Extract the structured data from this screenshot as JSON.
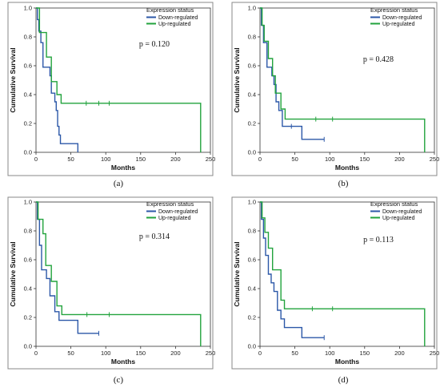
{
  "chart_data": [
    {
      "panel_label": "(a)",
      "type": "line",
      "xlabel": "Months",
      "ylabel": "Cumulative Survival",
      "xlim": [
        0,
        250
      ],
      "ylim": [
        0,
        1.0
      ],
      "xticks": [
        0,
        50,
        100,
        150,
        200,
        250
      ],
      "yticks": [
        0.0,
        0.2,
        0.4,
        0.6,
        0.8,
        1.0
      ],
      "legend_title": "Expression status",
      "legend_position": "top-right",
      "annotation": "p = 0.120",
      "series": [
        {
          "name": "Down-regulated",
          "color": "#2c58a8",
          "steps": [
            [
              0,
              1.0
            ],
            [
              2,
              0.92
            ],
            [
              4,
              0.84
            ],
            [
              7,
              0.76
            ],
            [
              10,
              0.59
            ],
            [
              20,
              0.53
            ],
            [
              22,
              0.41
            ],
            [
              27,
              0.35
            ],
            [
              29,
              0.29
            ],
            [
              31,
              0.18
            ],
            [
              33,
              0.12
            ],
            [
              35,
              0.06
            ],
            [
              60,
              0.0
            ]
          ],
          "censored": []
        },
        {
          "name": "Up-regulated",
          "color": "#22a33d",
          "steps": [
            [
              0,
              1.0
            ],
            [
              5,
              0.83
            ],
            [
              15,
              0.66
            ],
            [
              22,
              0.49
            ],
            [
              30,
              0.4
            ],
            [
              36,
              0.34
            ],
            [
              236,
              0.0
            ]
          ],
          "censored": [
            [
              72,
              0.34
            ],
            [
              90,
              0.34
            ],
            [
              105,
              0.34
            ]
          ]
        }
      ]
    },
    {
      "panel_label": "(b)",
      "type": "line",
      "xlabel": "Months",
      "ylabel": "Cumulative Survival",
      "xlim": [
        0,
        250
      ],
      "ylim": [
        0,
        1.0
      ],
      "xticks": [
        0,
        50,
        100,
        150,
        200,
        250
      ],
      "yticks": [
        0.0,
        0.2,
        0.4,
        0.6,
        0.8,
        1.0
      ],
      "legend_title": "Expression status",
      "legend_position": "top-right",
      "annotation": "p = 0.428",
      "series": [
        {
          "name": "Down-regulated",
          "color": "#2c58a8",
          "steps": [
            [
              0,
              1.0
            ],
            [
              2,
              0.88
            ],
            [
              5,
              0.76
            ],
            [
              10,
              0.59
            ],
            [
              17,
              0.53
            ],
            [
              20,
              0.47
            ],
            [
              23,
              0.35
            ],
            [
              27,
              0.29
            ],
            [
              32,
              0.18
            ],
            [
              60,
              0.09
            ],
            [
              92,
              0.09
            ]
          ],
          "censored": [
            [
              45,
              0.18
            ],
            [
              92,
              0.09
            ]
          ]
        },
        {
          "name": "Up-regulated",
          "color": "#22a33d",
          "steps": [
            [
              0,
              1.0
            ],
            [
              3,
              0.88
            ],
            [
              6,
              0.77
            ],
            [
              12,
              0.65
            ],
            [
              18,
              0.53
            ],
            [
              22,
              0.41
            ],
            [
              30,
              0.3
            ],
            [
              36,
              0.23
            ],
            [
              236,
              0.0
            ]
          ],
          "censored": [
            [
              80,
              0.23
            ],
            [
              104,
              0.23
            ]
          ]
        }
      ]
    },
    {
      "panel_label": "(c)",
      "type": "line",
      "xlabel": "Months",
      "ylabel": "Cumulative Survival",
      "xlim": [
        0,
        250
      ],
      "ylim": [
        0,
        1.0
      ],
      "xticks": [
        0,
        50,
        100,
        150,
        200,
        250
      ],
      "yticks": [
        0.0,
        0.2,
        0.4,
        0.6,
        0.8,
        1.0
      ],
      "legend_title": "Expression status",
      "legend_position": "top-right",
      "annotation": "p = 0.314",
      "series": [
        {
          "name": "Down-regulated",
          "color": "#2c58a8",
          "steps": [
            [
              0,
              1.0
            ],
            [
              2,
              0.88
            ],
            [
              5,
              0.7
            ],
            [
              8,
              0.53
            ],
            [
              15,
              0.47
            ],
            [
              20,
              0.35
            ],
            [
              27,
              0.24
            ],
            [
              33,
              0.18
            ],
            [
              60,
              0.09
            ],
            [
              90,
              0.09
            ]
          ],
          "censored": [
            [
              90,
              0.09
            ]
          ]
        },
        {
          "name": "Up-regulated",
          "color": "#22a33d",
          "steps": [
            [
              0,
              1.0
            ],
            [
              3,
              0.88
            ],
            [
              10,
              0.78
            ],
            [
              14,
              0.56
            ],
            [
              22,
              0.45
            ],
            [
              30,
              0.28
            ],
            [
              37,
              0.22
            ],
            [
              236,
              0.0
            ]
          ],
          "censored": [
            [
              73,
              0.22
            ],
            [
              105,
              0.22
            ]
          ]
        }
      ]
    },
    {
      "panel_label": "(d)",
      "type": "line",
      "xlabel": "Months",
      "ylabel": "Cumulative Survival",
      "xlim": [
        0,
        250
      ],
      "ylim": [
        0,
        1.0
      ],
      "xticks": [
        0,
        50,
        100,
        150,
        200,
        250
      ],
      "yticks": [
        0.0,
        0.2,
        0.4,
        0.6,
        0.8,
        1.0
      ],
      "legend_title": "Expression status",
      "legend_position": "top-right",
      "annotation": "p = 0.113",
      "series": [
        {
          "name": "Down-regulated",
          "color": "#2c58a8",
          "steps": [
            [
              0,
              1.0
            ],
            [
              2,
              0.88
            ],
            [
              5,
              0.75
            ],
            [
              8,
              0.63
            ],
            [
              12,
              0.5
            ],
            [
              16,
              0.44
            ],
            [
              20,
              0.38
            ],
            [
              25,
              0.25
            ],
            [
              30,
              0.19
            ],
            [
              35,
              0.13
            ],
            [
              60,
              0.06
            ],
            [
              92,
              0.06
            ]
          ],
          "censored": [
            [
              92,
              0.06
            ]
          ]
        },
        {
          "name": "Up-regulated",
          "color": "#22a33d",
          "steps": [
            [
              0,
              1.0
            ],
            [
              3,
              0.89
            ],
            [
              7,
              0.79
            ],
            [
              12,
              0.68
            ],
            [
              18,
              0.53
            ],
            [
              30,
              0.32
            ],
            [
              35,
              0.26
            ],
            [
              236,
              0.0
            ]
          ],
          "censored": [
            [
              75,
              0.26
            ],
            [
              104,
              0.26
            ]
          ]
        }
      ]
    }
  ]
}
